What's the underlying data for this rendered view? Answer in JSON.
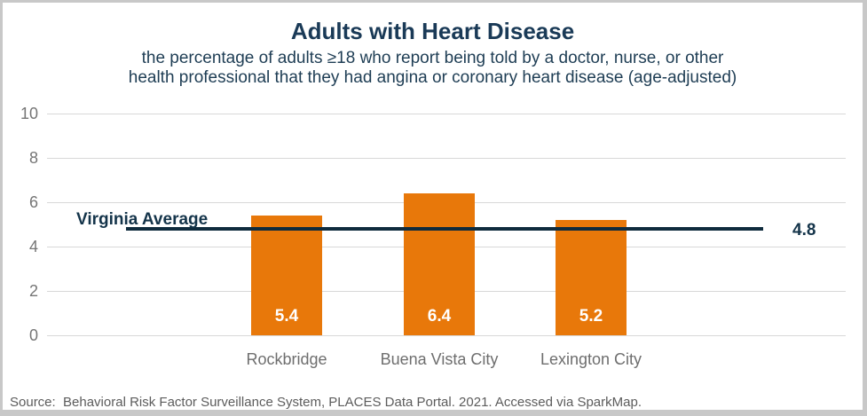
{
  "chart_data": {
    "type": "bar",
    "title": "Adults with Heart Disease",
    "subtitle_lines": [
      "the percentage of adults ≥18 who report being told by a doctor, nurse, or other",
      "health professional that they had angina or coronary heart disease (age-adjusted)"
    ],
    "categories": [
      "Rockbridge",
      "Buena Vista City",
      "Lexington City"
    ],
    "values": [
      5.4,
      6.4,
      5.2
    ],
    "value_labels": [
      "5.4",
      "6.4",
      "5.2"
    ],
    "reference_line": {
      "label": "Virginia Average",
      "value": 4.8,
      "value_label": "4.8"
    },
    "ylim": [
      0,
      10
    ],
    "yticks": [
      0,
      2,
      4,
      6,
      8,
      10
    ],
    "grid": true,
    "legend_position": "none",
    "colors": {
      "bar": "#e8780a",
      "reference_line": "#0f2b3d",
      "title": "#1a3a57",
      "subtitle": "#1e3d54",
      "annotation": "#14344a",
      "axis_text": "#757575",
      "category_text": "#6e6e6e",
      "gridline": "#d8d8d8",
      "value_label": "#ffffff",
      "source_text": "#5c5c5c",
      "frame_border": "#c8c8c8"
    }
  },
  "source_note": "Source:  Behavioral Risk Factor Surveillance System, PLACES Data Portal. 2021. Accessed via SparkMap."
}
